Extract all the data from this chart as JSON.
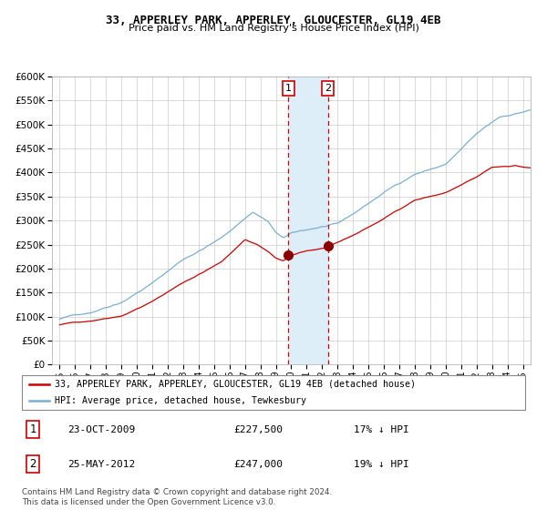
{
  "title1": "33, APPERLEY PARK, APPERLEY, GLOUCESTER, GL19 4EB",
  "title2": "Price paid vs. HM Land Registry's House Price Index (HPI)",
  "legend_line1": "33, APPERLEY PARK, APPERLEY, GLOUCESTER, GL19 4EB (detached house)",
  "legend_line2": "HPI: Average price, detached house, Tewkesbury",
  "sale1_date": "23-OCT-2009",
  "sale1_price": 227500,
  "sale1_label": "17% ↓ HPI",
  "sale2_date": "25-MAY-2012",
  "sale2_price": 247000,
  "sale2_label": "19% ↓ HPI",
  "footer": "Contains HM Land Registry data © Crown copyright and database right 2024.\nThis data is licensed under the Open Government Licence v3.0.",
  "hpi_color": "#7aafd4",
  "price_color": "#cc0000",
  "marker_color": "#8b0000",
  "highlight_color": "#deeef8",
  "sale1_x": 2009.81,
  "sale2_x": 2012.38,
  "ylim": [
    0,
    600000
  ],
  "xlim_start": 1994.5,
  "xlim_end": 2025.5,
  "yticks": [
    0,
    50000,
    100000,
    150000,
    200000,
    250000,
    300000,
    350000,
    400000,
    450000,
    500000,
    550000,
    600000
  ]
}
